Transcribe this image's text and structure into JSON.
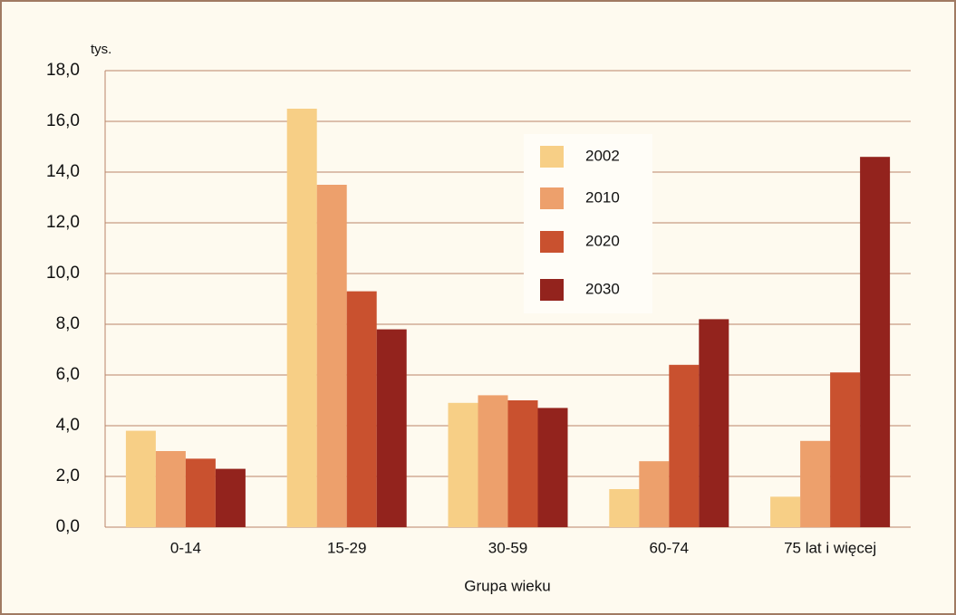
{
  "chart_data": {
    "type": "bar",
    "y_unit_label": "tys.",
    "x_label": "Grupa wieku",
    "categories": [
      "0-14",
      "15-29",
      "30-59",
      "60-74",
      "75 lat i więcej"
    ],
    "series": [
      {
        "name": "2002",
        "color": "#f7cf86",
        "values": [
          3.8,
          16.5,
          4.9,
          1.5,
          1.2
        ]
      },
      {
        "name": "2010",
        "color": "#eda06c",
        "values": [
          3.0,
          13.5,
          5.2,
          2.6,
          3.4
        ]
      },
      {
        "name": "2020",
        "color": "#c9512f",
        "values": [
          2.7,
          9.3,
          5.0,
          6.4,
          6.1
        ]
      },
      {
        "name": "2030",
        "color": "#93231d",
        "values": [
          2.3,
          7.8,
          4.7,
          8.2,
          14.6
        ]
      }
    ],
    "ylim": [
      0,
      18
    ],
    "yticks": [
      {
        "value": 0,
        "label": "0,0"
      },
      {
        "value": 2,
        "label": "2,0"
      },
      {
        "value": 4,
        "label": "4,0"
      },
      {
        "value": 6,
        "label": "6,0"
      },
      {
        "value": 8,
        "label": "8,0"
      },
      {
        "value": 10,
        "label": "10,0"
      },
      {
        "value": 12,
        "label": "12,0"
      },
      {
        "value": 14,
        "label": "14,0"
      },
      {
        "value": 16,
        "label": "16,0"
      },
      {
        "value": 18,
        "label": "18,0"
      }
    ],
    "grid": true,
    "legend_position": "upper center"
  }
}
